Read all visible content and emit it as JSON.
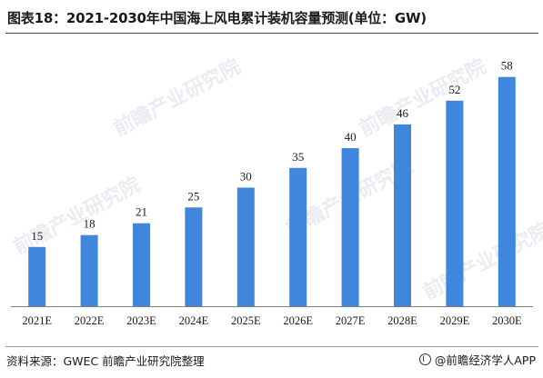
{
  "title": "图表18：2021-2030年中国海上风电累计装机容量预测(单位：GW)",
  "source": "资料来源：GWEC 前瞻产业研究院整理",
  "brand": "@前瞻经济学人APP",
  "watermark_text": "前瞻产业研究院",
  "colors": {
    "bar": "#3f86dc",
    "axis": "#7f7f7f"
  },
  "chart_data": {
    "type": "bar",
    "title": "图表18：2021-2030年中国海上风电累计装机容量预测(单位：GW)",
    "categories": [
      "2021E",
      "2022E",
      "2023E",
      "2024E",
      "2025E",
      "2026E",
      "2027E",
      "2028E",
      "2029E",
      "2030E"
    ],
    "values": [
      15,
      18,
      21,
      25,
      30,
      35,
      40,
      46,
      52,
      58
    ],
    "xlabel": "",
    "ylabel": "",
    "ylim": [
      0,
      60
    ],
    "grid": false,
    "legend": "none",
    "data_labels": true
  }
}
